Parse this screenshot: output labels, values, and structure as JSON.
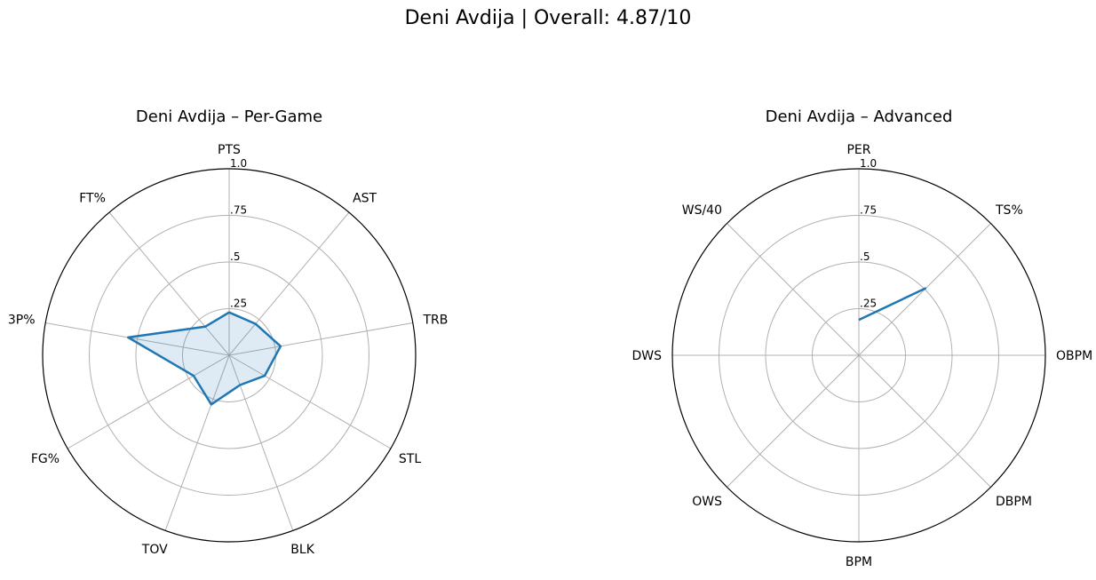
{
  "figure": {
    "suptitle": "Deni Avdija | Overall: 4.87/10"
  },
  "colors": {
    "series_line": "#1f77b4",
    "series_fill": "#1f77b4",
    "grid": "#b0b0b0",
    "spine": "#000000"
  },
  "chart_data": [
    {
      "type": "radar",
      "title": "Deni Avdija – Per-Game",
      "categories": [
        "PTS",
        "AST",
        "TRB",
        "STL",
        "BLK",
        "TOV",
        "FG%",
        "3P%",
        "FT%"
      ],
      "values": [
        0.23,
        0.22,
        0.28,
        0.22,
        0.17,
        0.28,
        0.22,
        0.55,
        0.2
      ],
      "rlim": [
        0,
        1.0
      ],
      "rticks": [
        0.25,
        0.5,
        0.75,
        1.0
      ],
      "rtick_labels": [
        ".25",
        ".5",
        ".75",
        "1.0"
      ],
      "filled": true,
      "closed": true,
      "grid": true
    },
    {
      "type": "radar",
      "title": "Deni Avdija – Advanced",
      "categories": [
        "PER",
        "TS%",
        "OBPM",
        "DBPM",
        "BPM",
        "OWS",
        "DWS",
        "WS/40"
      ],
      "values": [
        0.19,
        0.51,
        null,
        null,
        null,
        null,
        null,
        null
      ],
      "rlim": [
        0,
        1.0
      ],
      "rticks": [
        0.25,
        0.5,
        0.75,
        1.0
      ],
      "rtick_labels": [
        ".25",
        ".5",
        ".75",
        "1.0"
      ],
      "filled": false,
      "closed": false,
      "grid": true
    }
  ]
}
